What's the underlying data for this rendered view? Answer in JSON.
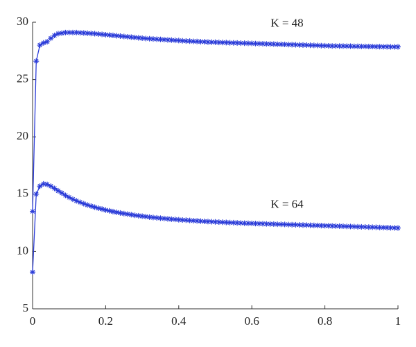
{
  "chart_data": {
    "type": "line",
    "marker": "asterisk",
    "x": [
      0,
      0.01,
      0.02,
      0.03,
      0.04,
      0.05,
      0.06,
      0.07,
      0.08,
      0.09,
      0.1,
      0.11,
      0.12,
      0.13,
      0.14,
      0.15,
      0.16,
      0.17,
      0.18,
      0.19,
      0.2,
      0.21,
      0.22,
      0.23,
      0.24,
      0.25,
      0.26,
      0.27,
      0.28,
      0.29,
      0.3,
      0.31,
      0.32,
      0.33,
      0.34,
      0.35,
      0.36,
      0.37,
      0.38,
      0.39,
      0.4,
      0.41,
      0.42,
      0.43,
      0.44,
      0.45,
      0.46,
      0.47,
      0.48,
      0.49,
      0.5,
      0.51,
      0.52,
      0.53,
      0.54,
      0.55,
      0.56,
      0.57,
      0.58,
      0.59,
      0.6,
      0.61,
      0.62,
      0.63,
      0.64,
      0.65,
      0.66,
      0.67,
      0.68,
      0.69,
      0.7,
      0.71,
      0.72,
      0.73,
      0.74,
      0.75,
      0.76,
      0.77,
      0.78,
      0.79,
      0.8,
      0.81,
      0.82,
      0.83,
      0.84,
      0.85,
      0.86,
      0.87,
      0.88,
      0.89,
      0.9,
      0.91,
      0.92,
      0.93,
      0.94,
      0.95,
      0.96,
      0.97,
      0.98,
      0.99,
      1
    ],
    "series": [
      {
        "name": "K = 48",
        "color": "#2a3bd8",
        "values": [
          13.5,
          26.6,
          28.0,
          28.2,
          28.3,
          28.6,
          28.85,
          29.0,
          29.05,
          29.1,
          29.1,
          29.1,
          29.1,
          29.08,
          29.06,
          29.04,
          29.02,
          29.0,
          28.97,
          28.94,
          28.91,
          28.88,
          28.85,
          28.82,
          28.79,
          28.76,
          28.73,
          28.7,
          28.67,
          28.64,
          28.61,
          28.58,
          28.56,
          28.54,
          28.52,
          28.5,
          28.48,
          28.46,
          28.44,
          28.42,
          28.4,
          28.38,
          28.36,
          28.35,
          28.33,
          28.32,
          28.3,
          28.29,
          28.27,
          28.26,
          28.25,
          28.24,
          28.23,
          28.22,
          28.21,
          28.2,
          28.19,
          28.18,
          28.17,
          28.16,
          28.15,
          28.14,
          28.13,
          28.12,
          28.11,
          28.1,
          28.09,
          28.08,
          28.07,
          28.06,
          28.05,
          28.04,
          28.03,
          28.02,
          28.01,
          28.0,
          27.99,
          27.98,
          27.97,
          27.96,
          27.95,
          27.94,
          27.93,
          27.93,
          27.92,
          27.92,
          27.91,
          27.91,
          27.9,
          27.9,
          27.89,
          27.89,
          27.88,
          27.88,
          27.87,
          27.87,
          27.86,
          27.86,
          27.85,
          27.85,
          27.85
        ]
      },
      {
        "name": "K = 64",
        "color": "#2a3bd8",
        "values": [
          8.2,
          15.0,
          15.7,
          15.9,
          15.85,
          15.7,
          15.5,
          15.3,
          15.1,
          14.9,
          14.72,
          14.56,
          14.42,
          14.29,
          14.17,
          14.06,
          13.96,
          13.87,
          13.78,
          13.7,
          13.62,
          13.55,
          13.48,
          13.42,
          13.36,
          13.31,
          13.26,
          13.21,
          13.16,
          13.12,
          13.08,
          13.04,
          13.0,
          12.97,
          12.94,
          12.91,
          12.88,
          12.85,
          12.82,
          12.8,
          12.77,
          12.75,
          12.73,
          12.71,
          12.69,
          12.67,
          12.65,
          12.63,
          12.61,
          12.6,
          12.58,
          12.57,
          12.55,
          12.54,
          12.52,
          12.51,
          12.5,
          12.48,
          12.47,
          12.46,
          12.45,
          12.44,
          12.43,
          12.42,
          12.41,
          12.4,
          12.39,
          12.38,
          12.37,
          12.36,
          12.35,
          12.34,
          12.33,
          12.32,
          12.31,
          12.3,
          12.29,
          12.28,
          12.27,
          12.26,
          12.25,
          12.24,
          12.23,
          12.22,
          12.21,
          12.2,
          12.19,
          12.18,
          12.17,
          12.16,
          12.15,
          12.14,
          12.13,
          12.12,
          12.11,
          12.1,
          12.09,
          12.08,
          12.07,
          12.06,
          12.05
        ]
      }
    ],
    "xlim": [
      0,
      1
    ],
    "ylim": [
      5,
      30
    ],
    "xticks": [
      0,
      0.2,
      0.4,
      0.6,
      0.8,
      1
    ],
    "yticks": [
      5,
      10,
      15,
      20,
      25,
      30
    ],
    "grid": false
  }
}
